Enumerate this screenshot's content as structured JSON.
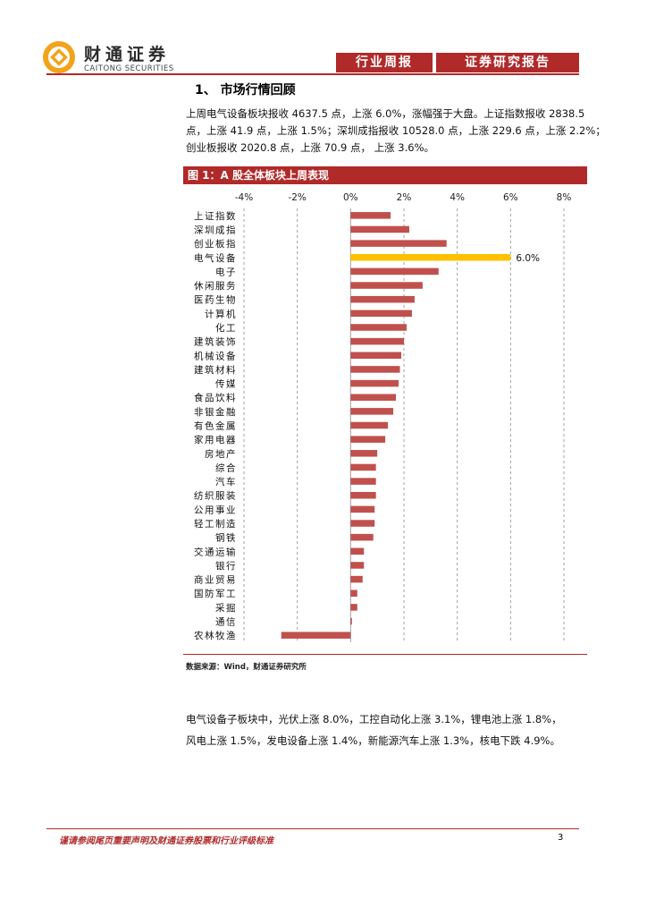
{
  "header": {
    "brand_cn": "财通证券",
    "brand_en": "CAITONG SECURITIES",
    "tab_report_type": "行业周报",
    "tab_report_category": "证券研究报告"
  },
  "section": {
    "title": "1、 市场行情回顾",
    "paragraph1_lines": [
      "上周电气设备板块报收 4637.5 点，上涨 6.0%，涨幅强于大盘。上证指数报收 2838.5",
      "点，上涨 41.9 点，上涨 1.5%；深圳成指报收 10528.0 点，上涨 229.6 点，上涨 2.2%；",
      "创业板报收 2020.8 点，上涨 70.9 点， 上涨 3.6%。"
    ],
    "paragraph2_lines": [
      "电气设备子板块中，光伏上涨 8.0%，工控自动化上涨 3.1%，锂电池上涨 1.8%，",
      "风电上涨 1.5%，发电设备上涨 1.4%，新能源汽车上涨 1.3%，核电下跌 4.9%。"
    ]
  },
  "figure": {
    "title": "图 1：A 股全体板块上周表现",
    "source": "数据来源：Wind，财通证券研究所"
  },
  "chart_data": {
    "type": "bar",
    "orientation": "horizontal",
    "xlim": [
      -4,
      8
    ],
    "xticks": [
      "-4%",
      "-2%",
      "0%",
      "2%",
      "4%",
      "6%",
      "8%"
    ],
    "xtick_values": [
      -4,
      -2,
      0,
      2,
      4,
      6,
      8
    ],
    "grid": true,
    "highlight_category": "电气设备",
    "highlight_label": "6.0%",
    "colors": {
      "bar": "#c0504d",
      "highlight": "#ffc000",
      "grid": "#a0a0a0"
    },
    "categories": [
      "上证指数",
      "深圳成指",
      "创业板指",
      "电气设备",
      "电子",
      "休闲服务",
      "医药生物",
      "计算机",
      "化工",
      "建筑装饰",
      "机械设备",
      "建筑材料",
      "传媒",
      "食品饮料",
      "非银金融",
      "有色金属",
      "家用电器",
      "房地产",
      "综合",
      "汽车",
      "纺织服装",
      "公用事业",
      "轻工制造",
      "钢铁",
      "交通运输",
      "银行",
      "商业贸易",
      "国防军工",
      "采掘",
      "通信",
      "农林牧渔"
    ],
    "values": [
      1.5,
      2.2,
      3.6,
      6.0,
      3.3,
      2.7,
      2.4,
      2.3,
      2.1,
      2.0,
      1.9,
      1.85,
      1.8,
      1.7,
      1.6,
      1.4,
      1.3,
      1.0,
      0.95,
      0.95,
      0.95,
      0.9,
      0.9,
      0.85,
      0.5,
      0.5,
      0.45,
      0.25,
      0.25,
      0.05,
      -2.6
    ]
  },
  "footer": {
    "disclaimer": "谨请参阅尾页重要声明及财通证券股票和行业评级标准",
    "page_number": "3"
  }
}
